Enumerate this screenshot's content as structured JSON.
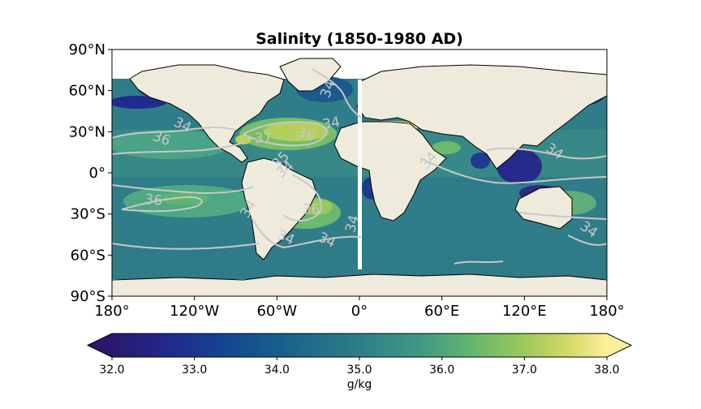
{
  "title": "Salinity (1850-1980 AD)",
  "map": {
    "projection": "PlateCarree",
    "lon_range": [
      -180,
      180
    ],
    "lat_range": [
      -90,
      90
    ],
    "land_color": "#efebdc",
    "coastline_color": "#000000",
    "contour_color": "#c8c8c8",
    "missing_data_color": "#ffffff",
    "lon_ticks": [
      {
        "value": -180,
        "label": "180°"
      },
      {
        "value": -120,
        "label": "120°W"
      },
      {
        "value": -60,
        "label": "60°W"
      },
      {
        "value": 0,
        "label": "0°"
      },
      {
        "value": 60,
        "label": "60°E"
      },
      {
        "value": 120,
        "label": "120°E"
      },
      {
        "value": 180,
        "label": "180°"
      }
    ],
    "lat_ticks": [
      {
        "value": 90,
        "label": "90°N"
      },
      {
        "value": 60,
        "label": "60°N"
      },
      {
        "value": 30,
        "label": "30°N"
      },
      {
        "value": 0,
        "label": "0°"
      },
      {
        "value": -30,
        "label": "30°S"
      },
      {
        "value": -60,
        "label": "60°S"
      },
      {
        "value": -90,
        "label": "90°S"
      }
    ],
    "contour_labels": [
      {
        "text": "34",
        "lon": -130,
        "lat": 32,
        "rot": 25
      },
      {
        "text": "36",
        "lon": -145,
        "lat": 22,
        "rot": 20
      },
      {
        "text": "37",
        "lon": -70,
        "lat": 22,
        "rot": 0
      },
      {
        "text": "36",
        "lon": -40,
        "lat": 25,
        "rot": 20
      },
      {
        "text": "34",
        "lon": -20,
        "lat": 33,
        "rot": -10
      },
      {
        "text": "34",
        "lon": -20,
        "lat": 60,
        "rot": -70
      },
      {
        "text": "35",
        "lon": -55,
        "lat": 7,
        "rot": -45
      },
      {
        "text": "34",
        "lon": -52,
        "lat": 0,
        "rot": -40
      },
      {
        "text": "36",
        "lon": -150,
        "lat": -23,
        "rot": 5
      },
      {
        "text": "36",
        "lon": -35,
        "lat": -30,
        "rot": 0
      },
      {
        "text": "34",
        "lon": -78,
        "lat": -28,
        "rot": -60
      },
      {
        "text": "34",
        "lon": -55,
        "lat": -50,
        "rot": 25
      },
      {
        "text": "34",
        "lon": -25,
        "lat": -52,
        "rot": 25
      },
      {
        "text": "34",
        "lon": -2,
        "lat": -38,
        "rot": -75
      },
      {
        "text": "34",
        "lon": 53,
        "lat": 7,
        "rot": -50
      },
      {
        "text": "34",
        "lon": 140,
        "lat": 13,
        "rot": 35
      },
      {
        "text": "34",
        "lon": 165,
        "lat": -44,
        "rot": 35
      }
    ]
  },
  "colorbar": {
    "label": "g/kg",
    "min": 32.0,
    "max": 38.0,
    "extend": "both",
    "colormap": "haline",
    "ticks": [
      "32.0",
      "33.0",
      "34.0",
      "35.0",
      "36.0",
      "37.0",
      "38.0"
    ]
  }
}
